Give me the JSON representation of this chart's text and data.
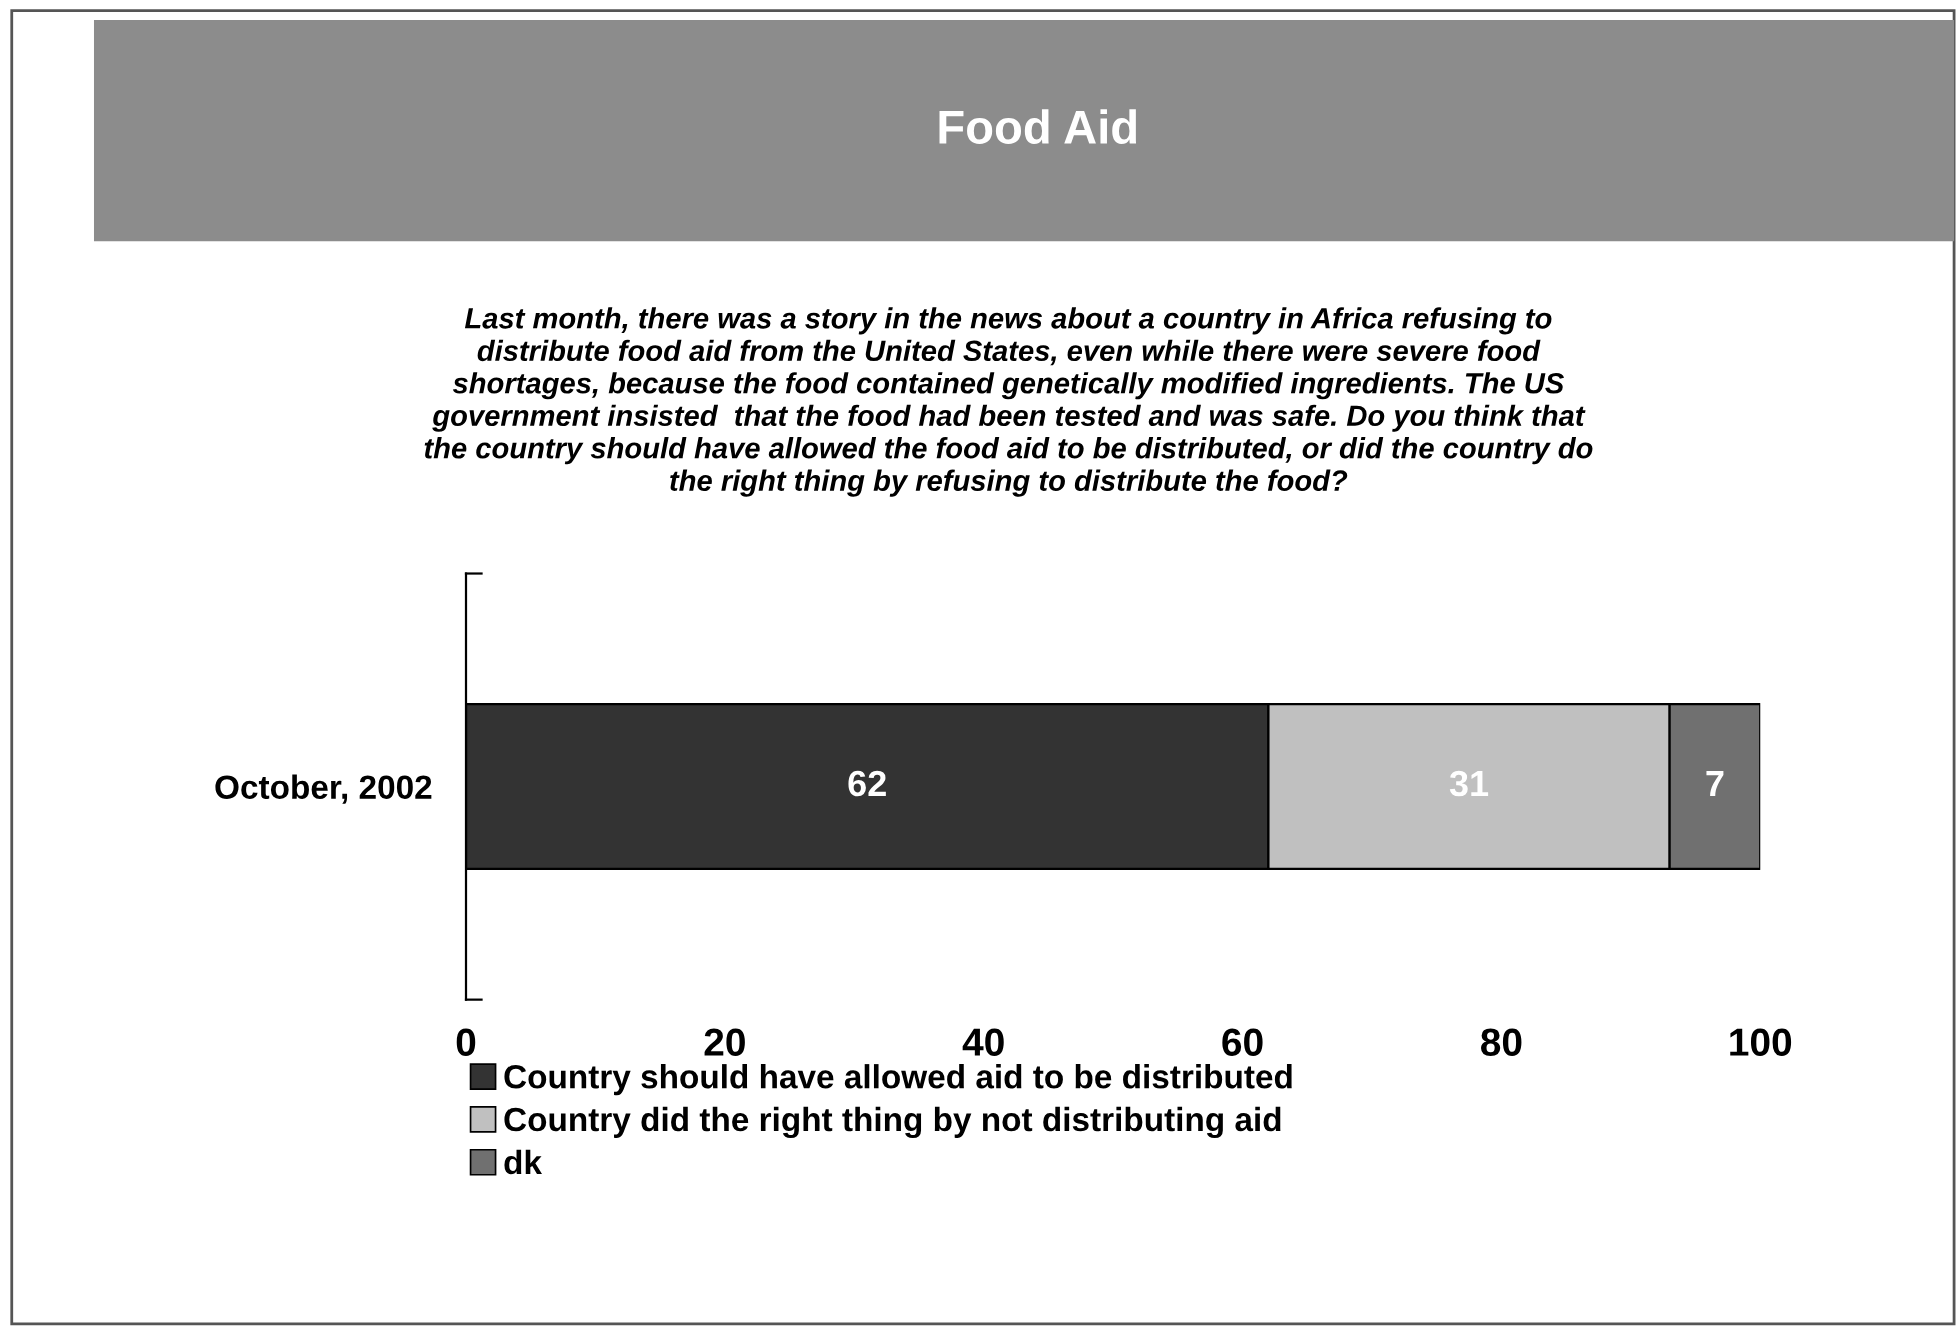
{
  "chart_data": {
    "type": "bar",
    "orientation": "horizontal",
    "stacked": true,
    "title": "Food Aid",
    "subtitle": "Last month, there was a story in the news about a country in Africa refusing to\ndistribute food aid from the United States, even while there were severe food\nshortages, because the food contained genetically modified ingredients. The US\ngovernment insisted  that the food had been tested and was safe. Do you think that\nthe country should have allowed the food aid to be distributed, or did the country do\nthe right thing by refusing to distribute the food?",
    "categories": [
      "October, 2002"
    ],
    "series": [
      {
        "name": "Country should have allowed aid to be distributed",
        "color": "#333333",
        "values": [
          62
        ]
      },
      {
        "name": "Country did the right thing by not distributing aid",
        "color": "#c0c0c0",
        "values": [
          31
        ]
      },
      {
        "name": "dk",
        "color": "#707070",
        "values": [
          7
        ]
      }
    ],
    "xlim": [
      0,
      100
    ],
    "xticks": [
      0,
      20,
      40,
      60,
      80,
      100
    ],
    "data_labels": true,
    "grid": false,
    "legend": "bottom"
  }
}
